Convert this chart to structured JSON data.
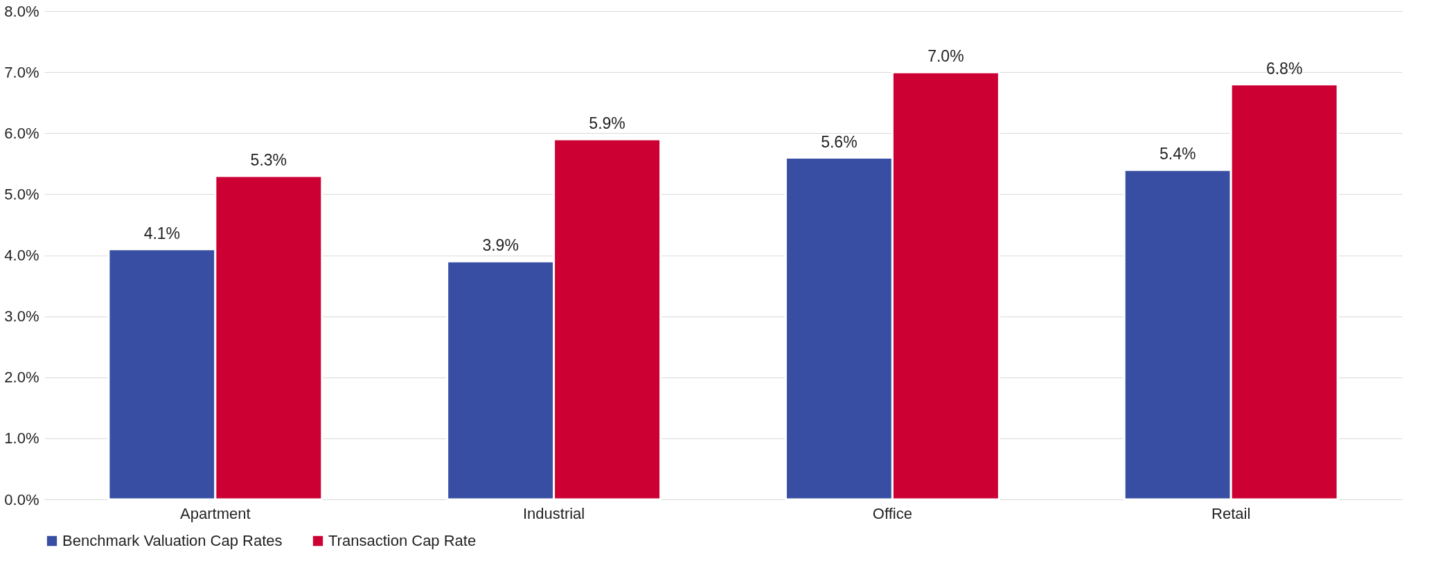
{
  "chart_data": {
    "type": "bar",
    "categories": [
      "Apartment",
      "Industrial",
      "Office",
      "Retail"
    ],
    "series": [
      {
        "name": "Benchmark Valuation Cap Rates",
        "color": "#374ea2",
        "values": [
          4.1,
          3.9,
          5.6,
          5.4
        ],
        "value_labels": [
          "4.1%",
          "3.9%",
          "5.6%",
          "5.4%"
        ]
      },
      {
        "name": "Transaction Cap Rate",
        "color": "#cc0033",
        "values": [
          5.3,
          5.9,
          7.0,
          6.8
        ],
        "value_labels": [
          "5.3%",
          "5.9%",
          "7.0%",
          "6.8%"
        ]
      }
    ],
    "ylim": [
      0,
      8
    ],
    "yticks": [
      {
        "value": 0,
        "label": "0.0%"
      },
      {
        "value": 1,
        "label": "1.0%"
      },
      {
        "value": 2,
        "label": "2.0%"
      },
      {
        "value": 3,
        "label": "3.0%"
      },
      {
        "value": 4,
        "label": "4.0%"
      },
      {
        "value": 5,
        "label": "5.0%"
      },
      {
        "value": 6,
        "label": "6.0%"
      },
      {
        "value": 7,
        "label": "7.0%"
      },
      {
        "value": 8,
        "label": "8.0%"
      }
    ],
    "grid": "y",
    "legend": "bottom"
  }
}
